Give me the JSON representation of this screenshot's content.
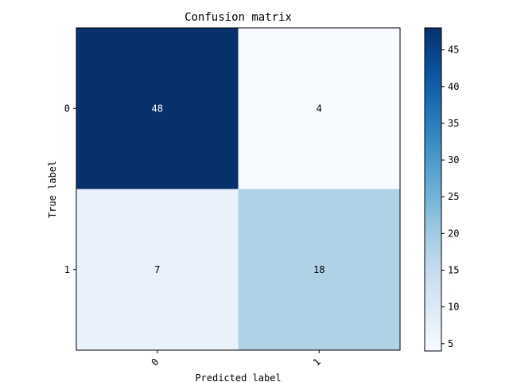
{
  "chart_data": {
    "type": "heatmap",
    "title": "Confusion matrix",
    "xlabel": "Predicted label",
    "ylabel": "True label",
    "x_ticks": [
      "0",
      "1"
    ],
    "y_ticks": [
      "0",
      "1"
    ],
    "matrix": [
      [
        48,
        4
      ],
      [
        7,
        18
      ]
    ],
    "colormap": "Blues",
    "colorbar": {
      "min": 4,
      "max": 48,
      "ticks": [
        5,
        10,
        15,
        20,
        25,
        30,
        35,
        40,
        45
      ]
    },
    "cell_text_colors": {
      "dark": "#ffffff",
      "light": "#000000"
    }
  },
  "colors": {
    "blues_low": "#f7fbff",
    "blues_high": "#08306b"
  }
}
